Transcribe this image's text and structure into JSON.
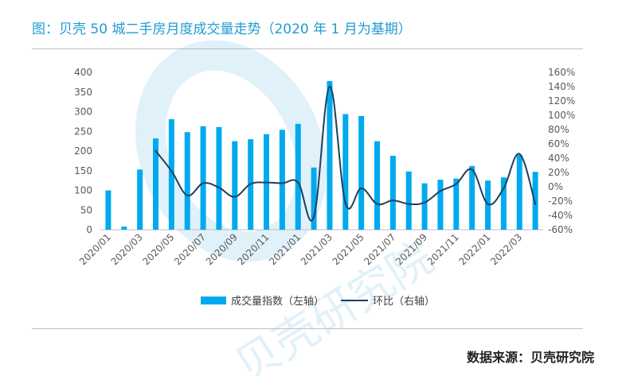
{
  "title": "图：贝壳 50 城二手房月度成交量走势（2020 年 1 月为基期）",
  "source": "数据来源：贝壳研究院",
  "watermark": "贝壳研究院",
  "colors": {
    "bar": "#00aaee",
    "line": "#1f3f5e",
    "title": "#1f9bd4"
  },
  "chart_data": {
    "type": "bar",
    "categories": [
      "2020/01",
      "2020/02",
      "2020/03",
      "2020/04",
      "2020/05",
      "2020/06",
      "2020/07",
      "2020/08",
      "2020/09",
      "2020/10",
      "2020/11",
      "2020/12",
      "2021/01",
      "2021/02",
      "2021/03",
      "2021/04",
      "2021/05",
      "2021/06",
      "2021/07",
      "2021/08",
      "2021/09",
      "2021/10",
      "2021/11",
      "2021/12",
      "2022/01",
      "2022/02",
      "2022/03",
      "2022/04"
    ],
    "x_tick_labels": [
      "2020/01",
      "2020/03",
      "2020/05",
      "2020/07",
      "2020/09",
      "2020/11",
      "2021/01",
      "2021/03",
      "2021/05",
      "2021/07",
      "2021/09",
      "2021/11",
      "2022/01",
      "2022/03"
    ],
    "series": [
      {
        "name": "成交量指数（左轴）",
        "type": "bar",
        "axis": "left",
        "values": [
          100,
          8,
          153,
          232,
          281,
          248,
          263,
          261,
          225,
          230,
          243,
          254,
          269,
          158,
          378,
          294,
          289,
          225,
          188,
          148,
          118,
          127,
          130,
          162,
          125,
          133,
          190,
          147
        ]
      },
      {
        "name": "环比（右轴）",
        "type": "line",
        "axis": "right",
        "values": [
          null,
          null,
          null,
          50,
          22,
          -12,
          5,
          -1,
          -14,
          4,
          6,
          5,
          6,
          -42,
          140,
          -23,
          -2,
          -24,
          -19,
          -24,
          -22,
          -6,
          4,
          24,
          -24,
          -2,
          46,
          -24
        ]
      }
    ],
    "left_axis": {
      "ticks": [
        0,
        50,
        100,
        150,
        200,
        250,
        300,
        350,
        400
      ],
      "ylim": [
        0,
        400
      ]
    },
    "right_axis": {
      "ticks": [
        "-60%",
        "-40%",
        "-20%",
        "0%",
        "20%",
        "40%",
        "60%",
        "80%",
        "100%",
        "120%",
        "140%",
        "160%"
      ],
      "ylim": [
        -60,
        160
      ]
    },
    "legend_position": "bottom"
  }
}
